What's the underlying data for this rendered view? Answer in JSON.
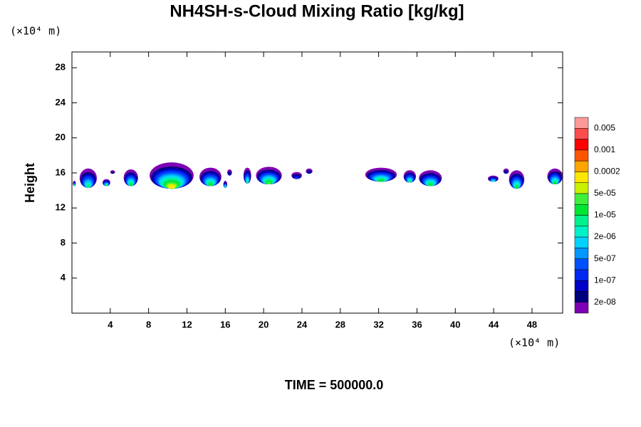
{
  "chart_data": {
    "type": "contour",
    "title": "NH4SH-s-Cloud Mixing Ratio [kg/kg]",
    "x_unit": "(×10⁴ m)",
    "y_unit": "(×10⁴ m)",
    "ylabel": "Height",
    "caption": "TIME = 500000.0",
    "xlim": [
      0,
      51.2
    ],
    "ylim": [
      0,
      29.8
    ],
    "xticks": [
      4,
      8,
      12,
      16,
      20,
      24,
      28,
      32,
      36,
      40,
      44,
      48
    ],
    "yticks": [
      4,
      8,
      12,
      16,
      20,
      24,
      28
    ],
    "colorbar": {
      "colors": [
        "#7d00b4",
        "#00007f",
        "#0000c8",
        "#0028f0",
        "#0050ff",
        "#0096ff",
        "#00d2ff",
        "#00f0c8",
        "#00f08c",
        "#00e632",
        "#3cf03c",
        "#c8f000",
        "#ffe600",
        "#ffa500",
        "#ff5500",
        "#ff0000",
        "#ff4c4c",
        "#ff9999"
      ],
      "levels": [
        {
          "value": 2e-08,
          "label": "2e-08"
        },
        {
          "value": 1e-07,
          "label": "1e-07"
        },
        {
          "value": 5e-07,
          "label": "5e-07"
        },
        {
          "value": 2e-06,
          "label": "2e-06"
        },
        {
          "value": 1e-05,
          "label": "1e-05"
        },
        {
          "value": 5e-05,
          "label": "5e-05"
        },
        0.0002,
        0.001,
        0.005
      ]
    },
    "cells": [
      {
        "x": [
          0.1,
          0.4
        ],
        "z": [
          14.5,
          15.1
        ],
        "level": 9
      },
      {
        "x": [
          0.8,
          2.6
        ],
        "z": [
          14.3,
          16.5
        ],
        "level": 8
      },
      {
        "x": [
          3.2,
          4.0
        ],
        "z": [
          14.5,
          15.3
        ],
        "level": 9
      },
      {
        "x": [
          4.0,
          4.5
        ],
        "z": [
          15.9,
          16.3
        ],
        "level": 1
      },
      {
        "x": [
          5.4,
          6.9
        ],
        "z": [
          14.5,
          16.4
        ],
        "level": 9
      },
      {
        "x": [
          8.1,
          12.7
        ],
        "z": [
          14.2,
          17.2
        ],
        "level": 12
      },
      {
        "x": [
          13.3,
          15.6
        ],
        "z": [
          14.5,
          16.6
        ],
        "level": 9
      },
      {
        "x": [
          15.8,
          16.2
        ],
        "z": [
          14.3,
          15.1
        ],
        "level": 9
      },
      {
        "x": [
          16.2,
          16.7
        ],
        "z": [
          15.7,
          16.4
        ],
        "level": 2
      },
      {
        "x": [
          17.9,
          18.7
        ],
        "z": [
          14.8,
          16.6
        ],
        "level": 8
      },
      {
        "x": [
          19.2,
          21.9
        ],
        "z": [
          14.7,
          16.7
        ],
        "level": 10
      },
      {
        "x": [
          22.9,
          24.0
        ],
        "z": [
          15.3,
          16.1
        ],
        "level": 3
      },
      {
        "x": [
          24.4,
          25.1
        ],
        "z": [
          15.9,
          16.5
        ],
        "level": 2
      },
      {
        "x": [
          30.6,
          33.9
        ],
        "z": [
          15.0,
          16.6
        ],
        "level": 9
      },
      {
        "x": [
          34.6,
          35.9
        ],
        "z": [
          14.9,
          16.3
        ],
        "level": 8
      },
      {
        "x": [
          36.2,
          38.6
        ],
        "z": [
          14.5,
          16.3
        ],
        "level": 9
      },
      {
        "x": [
          43.4,
          44.5
        ],
        "z": [
          15.0,
          15.7
        ],
        "level": 7
      },
      {
        "x": [
          45.0,
          45.6
        ],
        "z": [
          15.9,
          16.5
        ],
        "level": 2
      },
      {
        "x": [
          45.6,
          47.2
        ],
        "z": [
          14.2,
          16.3
        ],
        "level": 9
      },
      {
        "x": [
          49.6,
          51.2
        ],
        "z": [
          14.7,
          16.5
        ],
        "level": 9
      }
    ]
  }
}
